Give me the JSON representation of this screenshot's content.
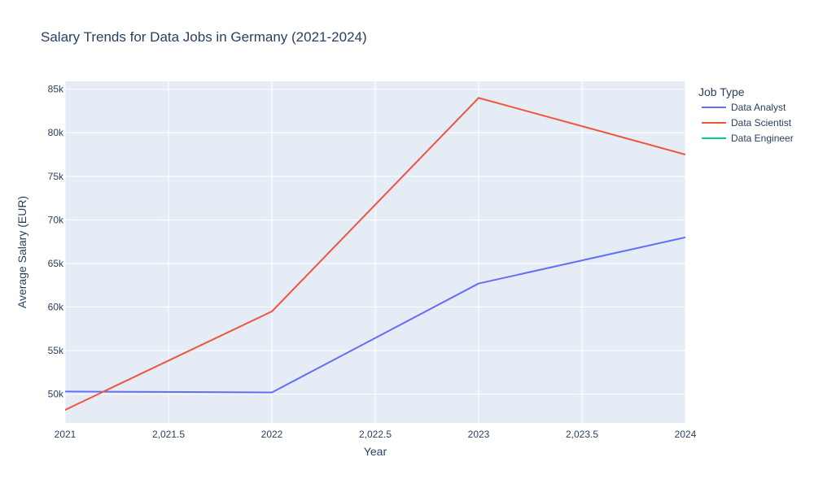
{
  "chart_data": {
    "type": "line",
    "title": "Salary Trends for Data Jobs in Germany (2021-2024)",
    "xlabel": "Year",
    "ylabel": "Average Salary (EUR)",
    "xlim": [
      2021,
      2024
    ],
    "ylim": [
      46700,
      85900
    ],
    "x_ticks": [
      2021,
      2021.5,
      2022,
      2022.5,
      2023,
      2023.5,
      2024
    ],
    "x_tick_labels": [
      "2021",
      "2,021.5",
      "2022",
      "2,022.5",
      "2023",
      "2,023.5",
      "2024"
    ],
    "y_ticks": [
      50000,
      55000,
      60000,
      65000,
      70000,
      75000,
      80000,
      85000
    ],
    "y_tick_labels": [
      "50k",
      "55k",
      "60k",
      "65k",
      "70k",
      "75k",
      "80k",
      "85k"
    ],
    "grid": true,
    "legend_title": "Job Type",
    "legend_position": "right",
    "plot_background": "#e5ecf6",
    "series": [
      {
        "name": "Data Analyst",
        "color": "#636efa",
        "x": [
          2021,
          2022,
          2023,
          2024
        ],
        "y": [
          50300,
          50200,
          62700,
          68000
        ]
      },
      {
        "name": "Data Scientist",
        "color": "#ef553b",
        "x": [
          2021,
          2022,
          2023,
          2024
        ],
        "y": [
          48200,
          59500,
          84000,
          77500
        ]
      },
      {
        "name": "Data Engineer",
        "color": "#00cc96",
        "x": [],
        "y": []
      }
    ]
  }
}
